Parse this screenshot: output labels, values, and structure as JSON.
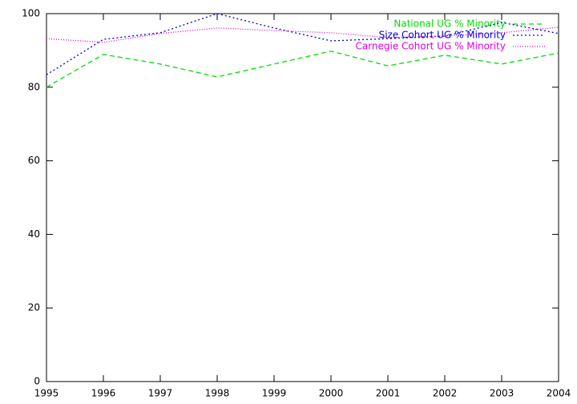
{
  "chart_data": {
    "type": "line",
    "x": [
      1995,
      1996,
      1997,
      1998,
      1999,
      2000,
      2001,
      2002,
      2003,
      2004
    ],
    "series": [
      {
        "name": "National UG % Minority",
        "color": "#00e000",
        "dash": "6,4",
        "values": [
          80.0,
          88.9,
          86.3,
          82.8,
          86.3,
          89.8,
          85.8,
          88.7,
          86.3,
          89.3
        ]
      },
      {
        "name": "Size Cohort UG % Minority",
        "color": "#0000e0",
        "dash": "2,3",
        "values": [
          83.4,
          93.0,
          94.8,
          100,
          96.1,
          92.6,
          93.2,
          93.9,
          97.6,
          94.6
        ]
      },
      {
        "name": "Carnegie Cohort UG % Minority",
        "color": "#e000e0",
        "dash": "1,2",
        "values": [
          93.2,
          92.2,
          94.6,
          96.1,
          95.4,
          94.8,
          93.5,
          93.9,
          94.8,
          96.3
        ]
      }
    ],
    "xlim": [
      1995,
      2004
    ],
    "xticks": [
      1995,
      1996,
      1997,
      1998,
      1999,
      2000,
      2001,
      2002,
      2003,
      2004
    ],
    "ylim": [
      0,
      100
    ],
    "yticks": [
      0,
      20,
      40,
      60,
      80,
      100
    ],
    "legend": "top-right"
  }
}
